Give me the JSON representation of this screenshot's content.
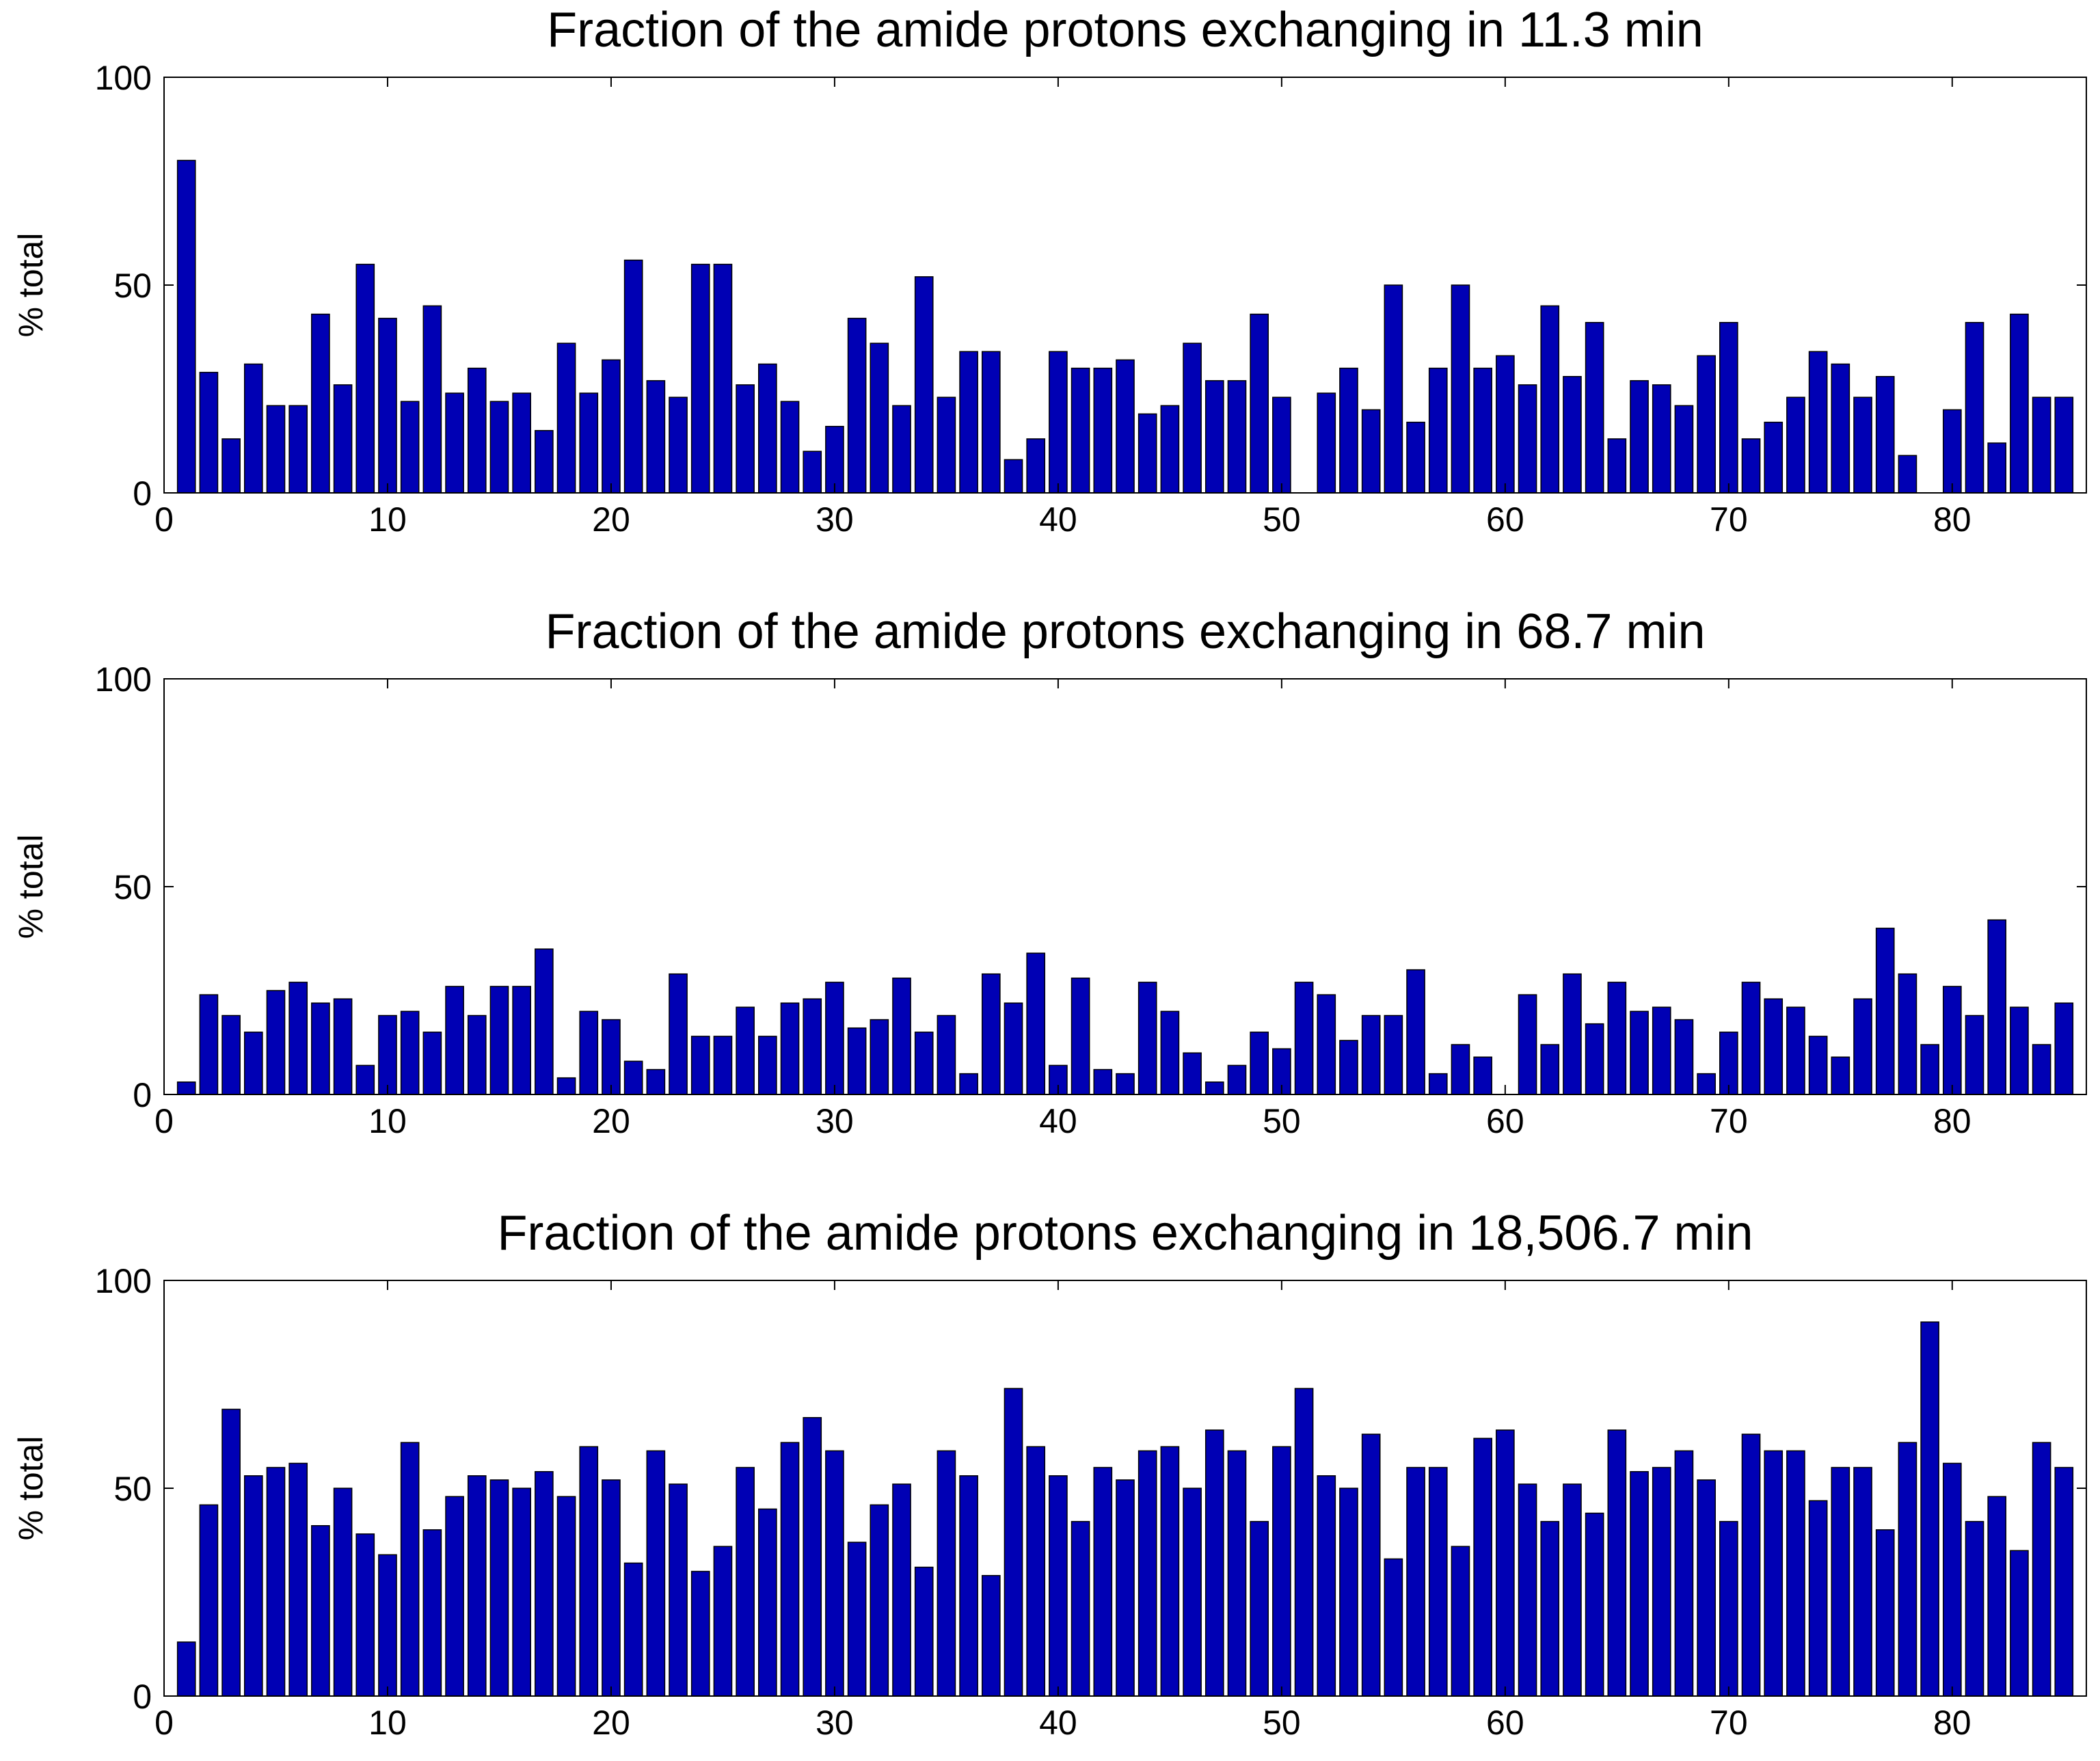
{
  "chart_data": [
    {
      "type": "bar",
      "title": "Fraction of the amide protons exchanging in 11.3 min",
      "xlabel": "",
      "ylabel": "% total",
      "xlim": [
        0,
        86
      ],
      "ylim": [
        0,
        100
      ],
      "xticks": [
        0,
        10,
        20,
        30,
        40,
        50,
        60,
        70,
        80
      ],
      "yticks": [
        0,
        50,
        100
      ],
      "x": [
        1,
        2,
        3,
        4,
        5,
        6,
        7,
        8,
        9,
        10,
        11,
        12,
        13,
        14,
        15,
        16,
        17,
        18,
        19,
        20,
        21,
        22,
        23,
        24,
        25,
        26,
        27,
        28,
        29,
        30,
        31,
        32,
        33,
        34,
        35,
        36,
        37,
        38,
        39,
        40,
        41,
        42,
        43,
        44,
        45,
        46,
        47,
        48,
        49,
        50,
        51,
        52,
        53,
        54,
        55,
        56,
        57,
        58,
        59,
        60,
        61,
        62,
        63,
        64,
        65,
        66,
        67,
        68,
        69,
        70,
        71,
        72,
        73,
        74,
        75,
        76,
        77,
        78,
        79,
        80,
        81,
        82,
        83,
        84,
        85
      ],
      "values": [
        80,
        29,
        13,
        31,
        21,
        21,
        43,
        26,
        55,
        42,
        22,
        45,
        24,
        30,
        22,
        24,
        15,
        36,
        24,
        32,
        56,
        27,
        23,
        55,
        55,
        26,
        31,
        22,
        10,
        16,
        42,
        36,
        21,
        52,
        23,
        34,
        34,
        8,
        13,
        34,
        30,
        30,
        32,
        19,
        21,
        36,
        27,
        27,
        43,
        23,
        0,
        24,
        30,
        20,
        50,
        17,
        30,
        50,
        30,
        33,
        26,
        45,
        28,
        41,
        13,
        27,
        26,
        21,
        33,
        41,
        13,
        17,
        23,
        34,
        31,
        23,
        28,
        9,
        0,
        20,
        41,
        12,
        43,
        23,
        23
      ]
    },
    {
      "type": "bar",
      "title": "Fraction of the amide protons exchanging in 68.7 min",
      "xlabel": "",
      "ylabel": "% total",
      "xlim": [
        0,
        86
      ],
      "ylim": [
        0,
        100
      ],
      "xticks": [
        0,
        10,
        20,
        30,
        40,
        50,
        60,
        70,
        80
      ],
      "yticks": [
        0,
        50,
        100
      ],
      "x": [
        1,
        2,
        3,
        4,
        5,
        6,
        7,
        8,
        9,
        10,
        11,
        12,
        13,
        14,
        15,
        16,
        17,
        18,
        19,
        20,
        21,
        22,
        23,
        24,
        25,
        26,
        27,
        28,
        29,
        30,
        31,
        32,
        33,
        34,
        35,
        36,
        37,
        38,
        39,
        40,
        41,
        42,
        43,
        44,
        45,
        46,
        47,
        48,
        49,
        50,
        51,
        52,
        53,
        54,
        55,
        56,
        57,
        58,
        59,
        60,
        61,
        62,
        63,
        64,
        65,
        66,
        67,
        68,
        69,
        70,
        71,
        72,
        73,
        74,
        75,
        76,
        77,
        78,
        79,
        80,
        81,
        82,
        83,
        84,
        85
      ],
      "values": [
        3,
        24,
        19,
        15,
        25,
        27,
        22,
        23,
        7,
        19,
        20,
        15,
        26,
        19,
        26,
        26,
        35,
        4,
        20,
        18,
        8,
        6,
        29,
        14,
        14,
        21,
        14,
        22,
        23,
        27,
        16,
        18,
        28,
        15,
        19,
        5,
        29,
        22,
        34,
        7,
        28,
        6,
        5,
        27,
        20,
        10,
        3,
        7,
        15,
        11,
        27,
        24,
        13,
        19,
        19,
        30,
        5,
        12,
        9,
        0,
        24,
        12,
        29,
        17,
        27,
        20,
        21,
        18,
        5,
        15,
        27,
        23,
        21,
        14,
        9,
        23,
        40,
        29,
        12,
        26,
        19,
        42,
        21,
        12,
        22
      ]
    },
    {
      "type": "bar",
      "title": "Fraction of the amide protons exchanging in 18,506.7 min",
      "xlabel": "",
      "ylabel": "% total",
      "xlim": [
        0,
        86
      ],
      "ylim": [
        0,
        100
      ],
      "xticks": [
        0,
        10,
        20,
        30,
        40,
        50,
        60,
        70,
        80
      ],
      "yticks": [
        0,
        50,
        100
      ],
      "x": [
        1,
        2,
        3,
        4,
        5,
        6,
        7,
        8,
        9,
        10,
        11,
        12,
        13,
        14,
        15,
        16,
        17,
        18,
        19,
        20,
        21,
        22,
        23,
        24,
        25,
        26,
        27,
        28,
        29,
        30,
        31,
        32,
        33,
        34,
        35,
        36,
        37,
        38,
        39,
        40,
        41,
        42,
        43,
        44,
        45,
        46,
        47,
        48,
        49,
        50,
        51,
        52,
        53,
        54,
        55,
        56,
        57,
        58,
        59,
        60,
        61,
        62,
        63,
        64,
        65,
        66,
        67,
        68,
        69,
        70,
        71,
        72,
        73,
        74,
        75,
        76,
        77,
        78,
        79,
        80,
        81,
        82,
        83,
        84,
        85
      ],
      "values": [
        13,
        46,
        69,
        53,
        55,
        56,
        41,
        50,
        39,
        34,
        61,
        40,
        48,
        53,
        52,
        50,
        54,
        48,
        60,
        52,
        32,
        59,
        51,
        30,
        36,
        55,
        45,
        61,
        67,
        59,
        37,
        46,
        51,
        31,
        59,
        53,
        29,
        74,
        60,
        53,
        42,
        55,
        52,
        59,
        60,
        50,
        64,
        59,
        42,
        60,
        74,
        53,
        50,
        63,
        33,
        55,
        55,
        36,
        62,
        64,
        51,
        42,
        51,
        44,
        64,
        54,
        55,
        59,
        52,
        42,
        63,
        59,
        59,
        47,
        55,
        55,
        40,
        61,
        90,
        56,
        42,
        48,
        35,
        61,
        55
      ]
    }
  ],
  "colors": {
    "bar_fill": "#0000b4",
    "axis": "#000000",
    "background": "#ffffff"
  }
}
